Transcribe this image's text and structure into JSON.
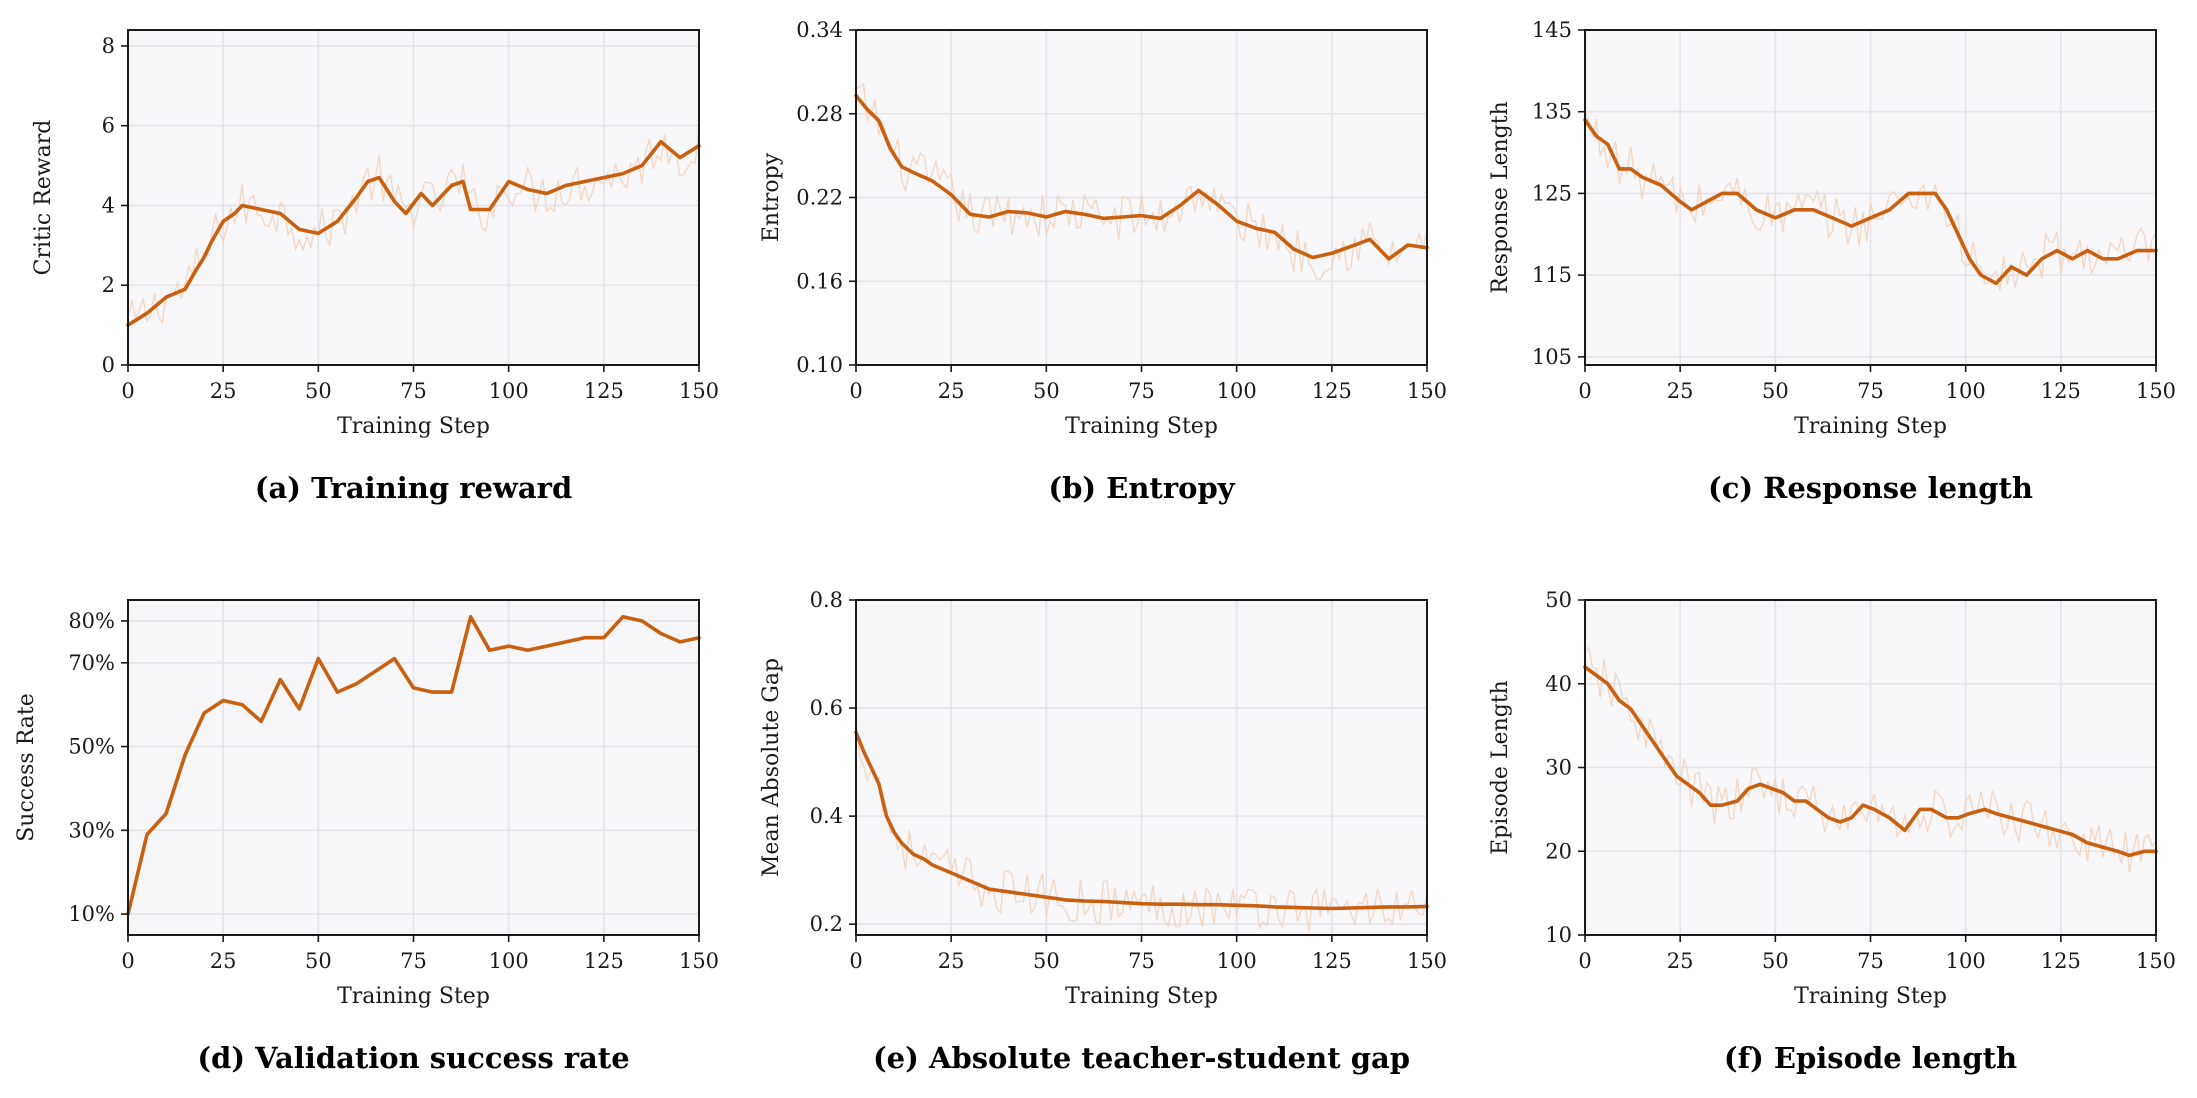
{
  "colors": {
    "line": "#c8600f",
    "raw": "#f0d2bc",
    "panel_bg": "#f7f7fa",
    "grid": "#e4e4e8",
    "frame": "#1a1a1a"
  },
  "chart_data": [
    {
      "type": "line",
      "caption": "(a) Training reward",
      "xlabel": "Training Step",
      "ylabel": "Critic Reward",
      "xlim": [
        0,
        150
      ],
      "ylim": [
        0,
        8.4
      ],
      "xticks": [
        0,
        25,
        50,
        75,
        100,
        125,
        150
      ],
      "xtick_labels": [
        "0",
        "25",
        "50",
        "75",
        "100",
        "125",
        "150"
      ],
      "yticks": [
        0,
        2,
        4,
        6,
        8
      ],
      "ytick_labels": [
        "0",
        "2",
        "4",
        "6",
        "8"
      ],
      "grid": true,
      "raw_trace": true,
      "series": [
        {
          "x": [
            0,
            5,
            10,
            15,
            18,
            20,
            22,
            25,
            28,
            30,
            35,
            40,
            45,
            50,
            55,
            60,
            63,
            66,
            70,
            73,
            77,
            80,
            85,
            88,
            90,
            95,
            100,
            105,
            110,
            115,
            120,
            125,
            130,
            135,
            140,
            145,
            150
          ],
          "y": [
            1.0,
            1.3,
            1.7,
            1.9,
            2.4,
            2.7,
            3.1,
            3.6,
            3.8,
            4.0,
            3.9,
            3.8,
            3.4,
            3.3,
            3.6,
            4.2,
            4.6,
            4.7,
            4.1,
            3.8,
            4.3,
            4.0,
            4.5,
            4.6,
            3.9,
            3.9,
            4.6,
            4.4,
            4.3,
            4.5,
            4.6,
            4.7,
            4.8,
            5.0,
            5.6,
            5.2,
            5.5
          ]
        }
      ]
    },
    {
      "type": "line",
      "caption": "(b) Entropy",
      "xlabel": "Training Step",
      "ylabel": "Entropy",
      "xlim": [
        0,
        150
      ],
      "ylim": [
        0.1,
        0.34
      ],
      "xticks": [
        0,
        25,
        50,
        75,
        100,
        125,
        150
      ],
      "xtick_labels": [
        "0",
        "25",
        "50",
        "75",
        "100",
        "125",
        "150"
      ],
      "yticks": [
        0.1,
        0.16,
        0.22,
        0.28,
        0.34
      ],
      "ytick_labels": [
        "0.10",
        "0.16",
        "0.22",
        "0.28",
        "0.34"
      ],
      "grid": true,
      "raw_trace": true,
      "series": [
        {
          "x": [
            0,
            3,
            6,
            9,
            12,
            15,
            20,
            25,
            30,
            35,
            40,
            45,
            50,
            55,
            60,
            65,
            70,
            75,
            80,
            85,
            90,
            95,
            100,
            105,
            110,
            115,
            120,
            125,
            130,
            135,
            140,
            145,
            150
          ],
          "y": [
            0.293,
            0.283,
            0.275,
            0.255,
            0.242,
            0.238,
            0.232,
            0.222,
            0.208,
            0.206,
            0.21,
            0.209,
            0.206,
            0.21,
            0.208,
            0.205,
            0.206,
            0.207,
            0.205,
            0.214,
            0.225,
            0.215,
            0.203,
            0.198,
            0.195,
            0.183,
            0.177,
            0.18,
            0.185,
            0.19,
            0.176,
            0.186,
            0.184
          ]
        }
      ]
    },
    {
      "type": "line",
      "caption": "(c) Response length",
      "xlabel": "Training Step",
      "ylabel": "Response Length",
      "xlim": [
        0,
        150
      ],
      "ylim": [
        104,
        145
      ],
      "xticks": [
        0,
        25,
        50,
        75,
        100,
        125,
        150
      ],
      "xtick_labels": [
        "0",
        "25",
        "50",
        "75",
        "100",
        "125",
        "150"
      ],
      "yticks": [
        105,
        115,
        125,
        135,
        145
      ],
      "ytick_labels": [
        "105",
        "115",
        "125",
        "135",
        "145"
      ],
      "grid": true,
      "raw_trace": true,
      "series": [
        {
          "x": [
            0,
            3,
            6,
            9,
            12,
            15,
            20,
            25,
            28,
            32,
            36,
            40,
            45,
            50,
            55,
            60,
            65,
            70,
            75,
            80,
            85,
            88,
            92,
            95,
            98,
            101,
            104,
            108,
            112,
            116,
            120,
            124,
            128,
            132,
            136,
            140,
            145,
            150
          ],
          "y": [
            134,
            132,
            131,
            128,
            128,
            127,
            126,
            124,
            123,
            124,
            125,
            125,
            123,
            122,
            123,
            123,
            122,
            121,
            122,
            123,
            125,
            125,
            125,
            123,
            120,
            117,
            115,
            114,
            116,
            115,
            117,
            118,
            117,
            118,
            117,
            117,
            118,
            118
          ]
        }
      ]
    },
    {
      "type": "line",
      "caption": "(d) Validation success rate",
      "xlabel": "Training Step",
      "ylabel": "Success Rate",
      "xlim": [
        0,
        150
      ],
      "ylim": [
        0.05,
        0.85
      ],
      "xticks": [
        0,
        25,
        50,
        75,
        100,
        125,
        150
      ],
      "xtick_labels": [
        "0",
        "25",
        "50",
        "75",
        "100",
        "125",
        "150"
      ],
      "yticks": [
        0.1,
        0.3,
        0.5,
        0.7,
        0.8
      ],
      "ytick_labels": [
        "10%",
        "30%",
        "50%",
        "70%",
        "80%"
      ],
      "grid": true,
      "raw_trace": false,
      "series": [
        {
          "x": [
            0,
            5,
            10,
            15,
            20,
            25,
            30,
            35,
            40,
            45,
            50,
            55,
            60,
            65,
            70,
            75,
            80,
            85,
            90,
            95,
            100,
            105,
            110,
            115,
            120,
            125,
            130,
            135,
            140,
            145,
            150
          ],
          "y": [
            0.1,
            0.29,
            0.34,
            0.48,
            0.58,
            0.61,
            0.6,
            0.56,
            0.66,
            0.59,
            0.71,
            0.63,
            0.65,
            0.68,
            0.71,
            0.64,
            0.63,
            0.63,
            0.81,
            0.73,
            0.74,
            0.73,
            0.74,
            0.75,
            0.76,
            0.76,
            0.81,
            0.8,
            0.77,
            0.75,
            0.76
          ]
        }
      ]
    },
    {
      "type": "line",
      "caption": "(e) Absolute teacher-student gap",
      "xlabel": "Training Step",
      "ylabel": "Mean Absolute Gap",
      "xlim": [
        0,
        150
      ],
      "ylim": [
        0.18,
        0.8
      ],
      "xticks": [
        0,
        25,
        50,
        75,
        100,
        125,
        150
      ],
      "xtick_labels": [
        "0",
        "25",
        "50",
        "75",
        "100",
        "125",
        "150"
      ],
      "yticks": [
        0.2,
        0.4,
        0.6,
        0.8
      ],
      "ytick_labels": [
        "0.2",
        "0.4",
        "0.6",
        "0.8"
      ],
      "grid": true,
      "raw_trace": true,
      "series": [
        {
          "x": [
            0,
            2,
            4,
            6,
            8,
            10,
            12,
            15,
            18,
            20,
            25,
            30,
            35,
            40,
            45,
            50,
            55,
            60,
            65,
            70,
            75,
            80,
            85,
            90,
            95,
            100,
            105,
            110,
            115,
            120,
            125,
            130,
            135,
            140,
            145,
            150
          ],
          "y": [
            0.555,
            0.52,
            0.49,
            0.46,
            0.4,
            0.37,
            0.35,
            0.33,
            0.32,
            0.31,
            0.295,
            0.28,
            0.265,
            0.26,
            0.255,
            0.25,
            0.245,
            0.243,
            0.242,
            0.24,
            0.238,
            0.237,
            0.237,
            0.236,
            0.236,
            0.235,
            0.234,
            0.232,
            0.231,
            0.23,
            0.229,
            0.23,
            0.231,
            0.232,
            0.232,
            0.233
          ]
        }
      ]
    },
    {
      "type": "line",
      "caption": "(f) Episode length",
      "xlabel": "Training Step",
      "ylabel": "Episode Length",
      "xlim": [
        0,
        150
      ],
      "ylim": [
        10,
        50
      ],
      "xticks": [
        0,
        25,
        50,
        75,
        100,
        125,
        150
      ],
      "xtick_labels": [
        "0",
        "25",
        "50",
        "75",
        "100",
        "125",
        "150"
      ],
      "yticks": [
        10,
        20,
        30,
        40,
        50
      ],
      "ytick_labels": [
        "10",
        "20",
        "30",
        "40",
        "50"
      ],
      "grid": true,
      "raw_trace": true,
      "series": [
        {
          "x": [
            0,
            3,
            6,
            9,
            12,
            15,
            18,
            21,
            24,
            27,
            30,
            33,
            36,
            40,
            43,
            46,
            49,
            52,
            55,
            58,
            61,
            64,
            67,
            70,
            73,
            76,
            80,
            84,
            88,
            91,
            95,
            98,
            101,
            105,
            108,
            112,
            116,
            120,
            124,
            128,
            132,
            136,
            140,
            143,
            147,
            150
          ],
          "y": [
            42,
            41,
            40,
            38,
            37,
            35,
            33,
            31,
            29,
            28,
            27,
            25.5,
            25.5,
            26,
            27.5,
            28,
            27.5,
            27,
            26,
            26,
            25,
            24,
            23.5,
            24,
            25.5,
            25,
            24,
            22.5,
            25,
            25,
            24,
            24,
            24.5,
            25,
            24.5,
            24,
            23.5,
            23,
            22.5,
            22,
            21,
            20.5,
            20,
            19.5,
            20,
            20
          ]
        }
      ]
    }
  ]
}
